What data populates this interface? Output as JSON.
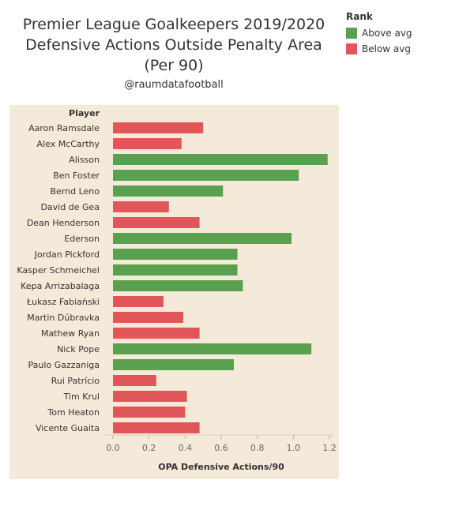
{
  "header": {
    "title_lines": [
      "Premier League Goalkeepers 2019/2020",
      "Defensive Actions Outside Penalty Area",
      "(Per 90)"
    ],
    "subtitle": "@raumdatafootball"
  },
  "legend": {
    "title": "Rank",
    "items": [
      {
        "label": "Above avg",
        "color": "#59a14f"
      },
      {
        "label": "Below avg",
        "color": "#e15759"
      }
    ]
  },
  "chart_data": {
    "type": "bar",
    "orientation": "horizontal",
    "category_header": "Player",
    "xlabel": "OPA Defensive Actions/90",
    "xlim": [
      0,
      1.25
    ],
    "ticks": [
      "0.0",
      "0.2",
      "0.4",
      "0.6",
      "0.8",
      "1.0",
      "1.2"
    ],
    "categories": [
      "Aaron Ramsdale",
      "Alex McCarthy",
      "Alisson",
      "Ben Foster",
      "Bernd Leno",
      "David de Gea",
      "Dean Henderson",
      "Ederson",
      "Jordan Pickford",
      "Kasper Schmeichel",
      "Kepa Arrizabalaga",
      "Łukasz Fabiański",
      "Martin Dúbravka",
      "Mathew Ryan",
      "Nick Pope",
      "Paulo Gazzaniga",
      "Rui Patrício",
      "Tim Krul",
      "Tom Heaton",
      "Vicente Guaita"
    ],
    "values": [
      0.5,
      0.38,
      1.19,
      1.03,
      0.61,
      0.31,
      0.48,
      0.99,
      0.69,
      0.69,
      0.72,
      0.28,
      0.39,
      0.48,
      1.1,
      0.67,
      0.24,
      0.41,
      0.4,
      0.48
    ],
    "rank": [
      "Below avg",
      "Below avg",
      "Above avg",
      "Above avg",
      "Above avg",
      "Below avg",
      "Below avg",
      "Above avg",
      "Above avg",
      "Above avg",
      "Above avg",
      "Below avg",
      "Below avg",
      "Below avg",
      "Above avg",
      "Above avg",
      "Below avg",
      "Below avg",
      "Below avg",
      "Below avg"
    ]
  }
}
